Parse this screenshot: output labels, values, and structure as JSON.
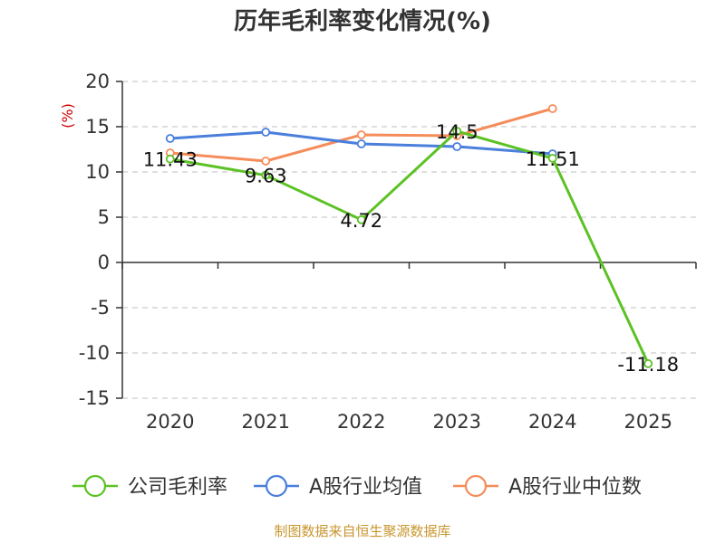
{
  "title": "历年毛利率变化情况(%)",
  "source": "制图数据来自恒生聚源数据库",
  "colors": {
    "grid": "#cccccc",
    "axis": "#333333",
    "ylabel": "#cc0000",
    "source": "#c8962e"
  },
  "chart_data": {
    "type": "line",
    "title": "历年毛利率变化情况(%)",
    "ylabel": "(%)",
    "xlabel": "",
    "categories": [
      "2020",
      "2021",
      "2022",
      "2023",
      "2024",
      "2025"
    ],
    "ylim": [
      -15,
      20
    ],
    "yticks": [
      20,
      15,
      10,
      5,
      0,
      -5,
      -10,
      -15
    ],
    "ytick_labels": [
      "20",
      "15",
      "10",
      "5",
      "0",
      "-5",
      "-10",
      "-15"
    ],
    "grid": true,
    "legend_position": "bottom",
    "series": [
      {
        "name": "公司毛利率",
        "color": "#5cc224",
        "values": [
          11.43,
          9.63,
          4.72,
          14.5,
          11.51,
          -11.18
        ],
        "labels": [
          "11.43",
          "9.63",
          "4.72",
          "14.5",
          "11.51",
          "-11.18"
        ]
      },
      {
        "name": "A股行业均值",
        "color": "#4a7fdc",
        "values": [
          13.7,
          14.4,
          13.1,
          12.8,
          12.0,
          null
        ]
      },
      {
        "name": "A股行业中位数",
        "color": "#f58c5a",
        "values": [
          12.1,
          11.2,
          14.1,
          14.0,
          17.0,
          null
        ]
      }
    ]
  }
}
